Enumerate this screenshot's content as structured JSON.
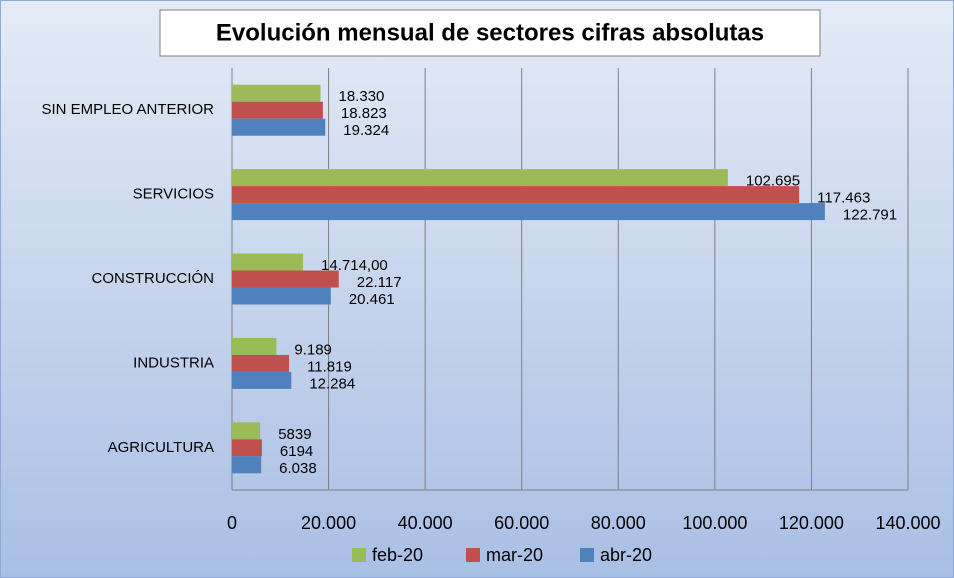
{
  "chart_data": {
    "type": "hbar",
    "title": "Evolución mensual de sectores cifras absolutas",
    "categories": [
      "SIN EMPLEO ANTERIOR",
      "SERVICIOS",
      "CONSTRUCCIÓN",
      "INDUSTRIA",
      "AGRICULTURA"
    ],
    "series": [
      {
        "name": "feb-20",
        "color": "#9bbb59",
        "values": [
          18330,
          102695,
          14714,
          9189,
          5839
        ],
        "value_labels": [
          "18.330",
          "102.695",
          "14.714,00",
          "9.189",
          "5839"
        ]
      },
      {
        "name": "mar-20",
        "color": "#c0504d",
        "values": [
          18823,
          117463,
          22117,
          11819,
          6194
        ],
        "value_labels": [
          "18.823",
          "117.463",
          "22.117",
          "11.819",
          "6194"
        ]
      },
      {
        "name": "abr-20",
        "color": "#4f81bd",
        "values": [
          19324,
          122791,
          20461,
          12284,
          6038
        ],
        "value_labels": [
          "19.324",
          "122.791",
          "20.461",
          "12.284",
          "6.038"
        ]
      }
    ],
    "xlim": [
      0,
      140000
    ],
    "xticks": [
      0,
      {
        "value": 20000,
        "label": "20.000"
      },
      {
        "value": 40000,
        "label": "40.000"
      },
      {
        "value": 60000,
        "label": "60.000"
      },
      {
        "value": 80000,
        "label": "80.000"
      },
      {
        "value": 100000,
        "label": "100.000"
      },
      {
        "value": 120000,
        "label": "120.000"
      },
      {
        "value": 140000,
        "label": "140.000"
      }
    ],
    "grid": true,
    "legend": "bottom"
  }
}
